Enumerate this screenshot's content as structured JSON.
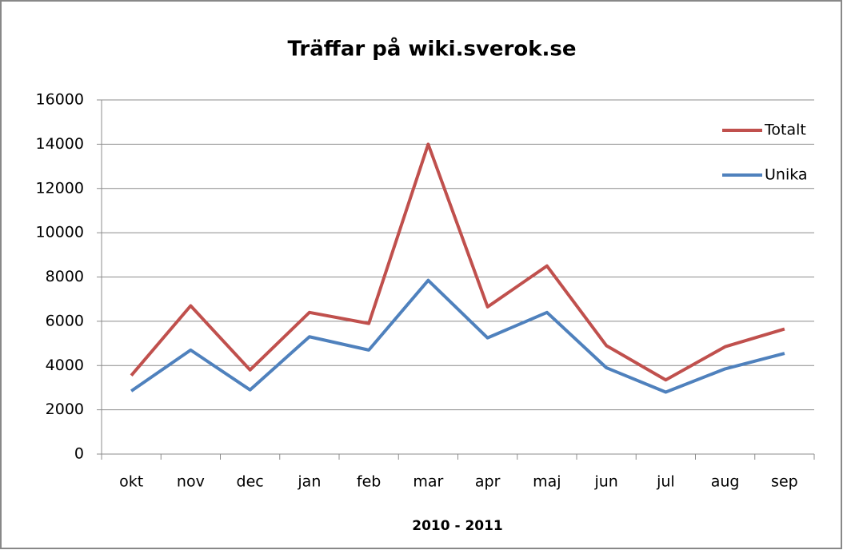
{
  "chart_data": {
    "type": "line",
    "title": "Träffar på wiki.sverok.se",
    "x_label": "2010 - 2011",
    "categories": [
      "okt",
      "nov",
      "dec",
      "jan",
      "feb",
      "mar",
      "apr",
      "maj",
      "jun",
      "jul",
      "aug",
      "sep"
    ],
    "series": [
      {
        "name": "Totalt",
        "color": "#c0504d",
        "values": [
          3550,
          6700,
          3800,
          6400,
          5900,
          14000,
          6650,
          8500,
          4900,
          3350,
          4850,
          5650
        ]
      },
      {
        "name": "Unika",
        "color": "#4f81bd",
        "values": [
          2850,
          4700,
          2900,
          5300,
          4700,
          7850,
          5250,
          6400,
          3900,
          2800,
          3850,
          4550
        ]
      }
    ],
    "ylim": [
      0,
      16000
    ],
    "yticks": [
      0,
      2000,
      4000,
      6000,
      8000,
      10000,
      12000,
      14000,
      16000
    ],
    "grid": true,
    "legend": "top-right"
  }
}
